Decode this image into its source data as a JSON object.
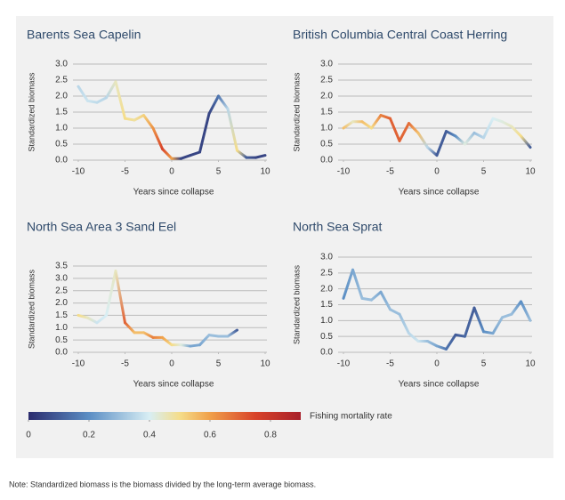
{
  "chart_data": [
    {
      "type": "line",
      "title": "Barents Sea Capelin",
      "x_label": "Years since collapse",
      "y_label": "Standardized biomass",
      "x": [
        -10,
        -9,
        -8,
        -7,
        -6,
        -5,
        -4,
        -3,
        -2,
        -1,
        0,
        1,
        2,
        3,
        4,
        5,
        6,
        7,
        8,
        9,
        10
      ],
      "values": [
        2.3,
        1.85,
        1.8,
        1.95,
        2.45,
        1.3,
        1.25,
        1.4,
        1.0,
        0.35,
        0.05,
        0.05,
        0.15,
        0.25,
        1.45,
        2.0,
        1.6,
        0.3,
        0.08,
        0.08,
        0.15
      ],
      "mortality": [
        0.35,
        0.38,
        0.36,
        0.35,
        0.45,
        0.5,
        0.48,
        0.52,
        0.62,
        0.75,
        0.6,
        0.05,
        0.05,
        0.05,
        0.05,
        0.15,
        0.35,
        0.5,
        0.1,
        0.05,
        0.05
      ],
      "xlim": [
        -10,
        10
      ],
      "ylim": [
        0,
        3
      ],
      "xticks": [
        -10,
        -5,
        0,
        5,
        10
      ],
      "yticks": [
        {
          "value": 0,
          "label": "0.0"
        },
        {
          "value": 0.5,
          "label": "0.5"
        },
        {
          "value": 1,
          "label": "1.0"
        },
        {
          "value": 1.5,
          "label": "1.5"
        },
        {
          "value": 2,
          "label": "2.0"
        },
        {
          "value": 2.5,
          "label": "2.5"
        },
        {
          "value": 3,
          "label": "3.0"
        }
      ]
    },
    {
      "type": "line",
      "title": "British Columbia Central Coast Herring",
      "x_label": "Years since collapse",
      "y_label": "Standardized biomass",
      "x": [
        -10,
        -9,
        -8,
        -7,
        -6,
        -5,
        -4,
        -3,
        -2,
        -1,
        0,
        1,
        2,
        3,
        4,
        5,
        6,
        7,
        8,
        9,
        10
      ],
      "values": [
        1.0,
        1.2,
        1.2,
        1.0,
        1.4,
        1.3,
        0.6,
        1.15,
        0.85,
        0.4,
        0.15,
        0.9,
        0.75,
        0.5,
        0.85,
        0.7,
        1.3,
        1.2,
        1.05,
        0.75,
        0.4
      ],
      "mortality": [
        0.55,
        0.45,
        0.55,
        0.5,
        0.65,
        0.7,
        0.7,
        0.68,
        0.55,
        0.35,
        0.1,
        0.1,
        0.2,
        0.42,
        0.3,
        0.35,
        0.4,
        0.42,
        0.45,
        0.5,
        0.1
      ],
      "xlim": [
        -10,
        10
      ],
      "ylim": [
        0,
        3
      ],
      "xticks": [
        -10,
        -5,
        0,
        5,
        10
      ],
      "yticks": [
        {
          "value": 0,
          "label": "0.0"
        },
        {
          "value": 0.5,
          "label": "0.5"
        },
        {
          "value": 1,
          "label": "1.0"
        },
        {
          "value": 1.5,
          "label": "1.5"
        },
        {
          "value": 2,
          "label": "2.0"
        },
        {
          "value": 2.5,
          "label": "2.5"
        },
        {
          "value": 3,
          "label": "3.0"
        }
      ]
    },
    {
      "type": "line",
      "title": "North Sea Area 3 Sand Eel",
      "x_label": "Years since collapse",
      "y_label": "Standardized biomass",
      "x": [
        -10,
        -9,
        -8,
        -7,
        -6,
        -5,
        -4,
        -3,
        -2,
        -1,
        0,
        1,
        2,
        3,
        4,
        5,
        6,
        7
      ],
      "values": [
        1.5,
        1.4,
        1.2,
        1.5,
        3.3,
        1.2,
        0.8,
        0.8,
        0.6,
        0.6,
        0.3,
        0.3,
        0.25,
        0.3,
        0.7,
        0.65,
        0.65,
        0.9
      ],
      "mortality": [
        0.5,
        0.45,
        0.38,
        0.4,
        0.45,
        0.7,
        0.55,
        0.55,
        0.65,
        0.6,
        0.5,
        0.42,
        0.25,
        0.25,
        0.3,
        0.3,
        0.3,
        0.1
      ],
      "xlim": [
        -10,
        10
      ],
      "ylim": [
        0,
        3.5
      ],
      "xticks": [
        -10,
        -5,
        0,
        5,
        10
      ],
      "yticks": [
        {
          "value": 0,
          "label": "0.0"
        },
        {
          "value": 0.5,
          "label": "0.5"
        },
        {
          "value": 1,
          "label": "1.0"
        },
        {
          "value": 1.5,
          "label": "1.5"
        },
        {
          "value": 2,
          "label": "2.0"
        },
        {
          "value": 2.5,
          "label": "2.5"
        },
        {
          "value": 3,
          "label": "3.0"
        },
        {
          "value": 3.5,
          "label": "3.5"
        }
      ]
    },
    {
      "type": "line",
      "title": "North Sea Sprat",
      "x_label": "Years since collapse",
      "y_label": "Standardized biomass",
      "x": [
        -10,
        -9,
        -8,
        -7,
        -6,
        -5,
        -4,
        -3,
        -2,
        -1,
        0,
        1,
        2,
        3,
        4,
        5,
        6,
        7,
        8,
        9,
        10
      ],
      "values": [
        1.7,
        2.6,
        1.7,
        1.65,
        1.9,
        1.35,
        1.2,
        0.6,
        0.35,
        0.35,
        0.2,
        0.1,
        0.55,
        0.5,
        1.4,
        0.65,
        0.6,
        1.1,
        1.2,
        1.6,
        1.0
      ],
      "mortality": [
        0.2,
        0.25,
        0.3,
        0.3,
        0.25,
        0.3,
        0.3,
        0.35,
        0.38,
        0.3,
        0.25,
        0.15,
        0.1,
        0.12,
        0.1,
        0.2,
        0.25,
        0.3,
        0.3,
        0.2,
        0.3
      ],
      "xlim": [
        -10,
        10
      ],
      "ylim": [
        0,
        3
      ],
      "xticks": [
        -10,
        -5,
        0,
        5,
        10
      ],
      "yticks": [
        {
          "value": 0,
          "label": "0.0"
        },
        {
          "value": 0.5,
          "label": "0.5"
        },
        {
          "value": 1,
          "label": "1.0"
        },
        {
          "value": 1.5,
          "label": "1.5"
        },
        {
          "value": 2,
          "label": "2.0"
        },
        {
          "value": 2.5,
          "label": "2.5"
        },
        {
          "value": 3,
          "label": "3.0"
        }
      ]
    }
  ],
  "colorbar": {
    "label": "Fishing mortality rate",
    "lim": [
      0,
      0.9
    ],
    "ticks": [
      0,
      0.2,
      0.4,
      0.6,
      0.8
    ],
    "stops": [
      {
        "value": 0,
        "color": "#2b2c6e"
      },
      {
        "value": 0.2,
        "color": "#5b8ec4"
      },
      {
        "value": 0.4,
        "color": "#d8eef4"
      },
      {
        "value": 0.5,
        "color": "#f5dd8a"
      },
      {
        "value": 0.6,
        "color": "#f0a04a"
      },
      {
        "value": 0.75,
        "color": "#d8432a"
      },
      {
        "value": 0.9,
        "color": "#a8202a"
      }
    ]
  },
  "note": "Note: Standardized biomass is the biomass divided by the long-term average biomass."
}
